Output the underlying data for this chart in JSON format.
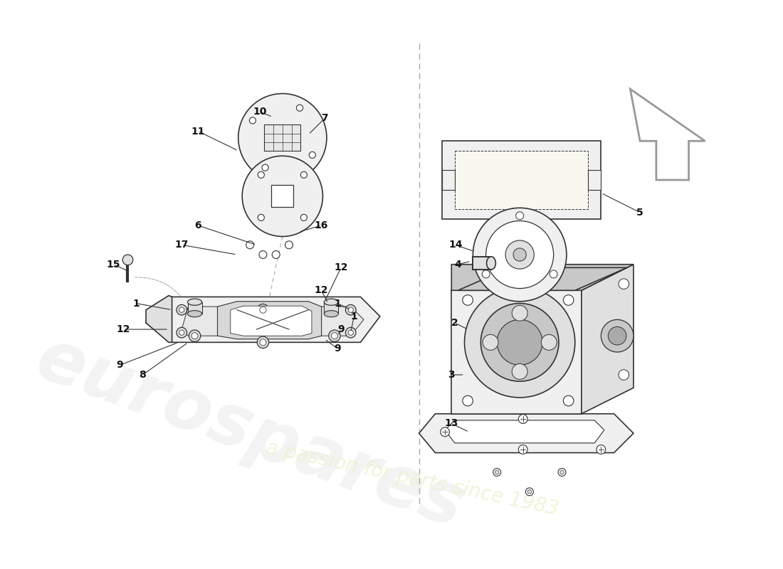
{
  "bg_color": "#ffffff",
  "lc": "#333333",
  "fc_light": "#f0f0f0",
  "fc_mid": "#e0e0e0",
  "fc_dark": "#c8c8c8",
  "dc": "#aaaaaa",
  "label_color": "#111111",
  "watermark1_color": "#e8e8e8",
  "watermark2_color": "#f0f0d0",
  "arrow_up_color": "#cccccc"
}
